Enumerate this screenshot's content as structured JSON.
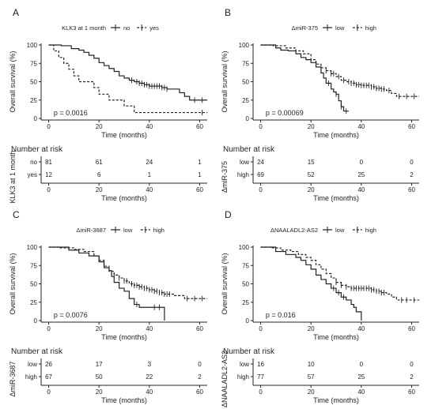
{
  "page": {
    "background": "#ffffff",
    "text_color": "#222222"
  },
  "chart_data": [
    {
      "type": "line",
      "panel_letter": "A",
      "legend_title": "KLK3 at 1 month",
      "legend_position": "top",
      "xlabel": "Time (months)",
      "ylabel": "Overall survival (%)",
      "xlim": [
        -3,
        63
      ],
      "ylim": [
        0,
        100
      ],
      "xticks": [
        0,
        20,
        40,
        60
      ],
      "yticks": [
        0,
        25,
        50,
        75,
        100
      ],
      "pvalue": "p = 0.0016",
      "series": [
        {
          "name": "no",
          "style": "solid",
          "steps": [
            [
              0,
              100
            ],
            [
              3,
              100
            ],
            [
              5,
              99
            ],
            [
              9,
              95
            ],
            [
              12,
              93
            ],
            [
              14,
              90
            ],
            [
              16,
              86
            ],
            [
              18,
              82
            ],
            [
              20,
              76
            ],
            [
              22,
              72
            ],
            [
              24,
              68
            ],
            [
              26,
              64
            ],
            [
              28,
              58
            ],
            [
              30,
              55
            ],
            [
              32,
              52
            ],
            [
              34,
              50
            ],
            [
              36,
              48
            ],
            [
              38,
              46
            ],
            [
              40,
              44
            ],
            [
              45,
              42
            ],
            [
              47,
              40
            ],
            [
              52,
              35
            ],
            [
              54,
              30
            ],
            [
              56,
              25
            ],
            [
              63,
              25
            ]
          ],
          "censor": [
            33,
            35,
            36,
            37,
            38,
            39,
            40,
            41,
            42,
            43,
            44,
            45,
            46,
            47,
            58,
            61
          ]
        },
        {
          "name": "yes",
          "style": "dashed",
          "steps": [
            [
              0,
              100
            ],
            [
              2,
              92
            ],
            [
              4,
              83
            ],
            [
              6,
              75
            ],
            [
              8,
              67
            ],
            [
              10,
              58
            ],
            [
              12,
              50
            ],
            [
              18,
              42
            ],
            [
              20,
              33
            ],
            [
              24,
              25
            ],
            [
              30,
              17
            ],
            [
              34,
              8
            ],
            [
              63,
              8
            ]
          ],
          "censor": [
            61
          ]
        }
      ],
      "risk_table": {
        "title": "Number at risk",
        "ylabel": "KLK3 at 1 month",
        "xlabel": "Time (months)",
        "rows": [
          {
            "label": "no",
            "values": [
              "81",
              "61",
              "24",
              "1"
            ]
          },
          {
            "label": "yes",
            "values": [
              "12",
              "6",
              "1",
              "1"
            ]
          }
        ]
      }
    },
    {
      "type": "line",
      "panel_letter": "B",
      "legend_title": "ΔmiR-375",
      "legend_position": "top",
      "xlabel": "Time (months)",
      "ylabel": "Overall survival (%)",
      "xlim": [
        -3,
        63
      ],
      "ylim": [
        0,
        100
      ],
      "xticks": [
        0,
        20,
        40,
        60
      ],
      "yticks": [
        0,
        25,
        50,
        75,
        100
      ],
      "pvalue": "p = 0.00069",
      "series": [
        {
          "name": "low",
          "style": "solid",
          "steps": [
            [
              0,
              100
            ],
            [
              4,
              100
            ],
            [
              6,
              96
            ],
            [
              8,
              93
            ],
            [
              11,
              92
            ],
            [
              14,
              88
            ],
            [
              16,
              83
            ],
            [
              18,
              80
            ],
            [
              20,
              76
            ],
            [
              22,
              70
            ],
            [
              24,
              62
            ],
            [
              25,
              55
            ],
            [
              26,
              48
            ],
            [
              28,
              40
            ],
            [
              29,
              36
            ],
            [
              30,
              33
            ],
            [
              31,
              24
            ],
            [
              32,
              16
            ],
            [
              33,
              10
            ],
            [
              35,
              10
            ]
          ],
          "censor": [
            27,
            30,
            32,
            34
          ]
        },
        {
          "name": "high",
          "style": "dashed",
          "steps": [
            [
              0,
              100
            ],
            [
              5,
              99
            ],
            [
              10,
              96
            ],
            [
              14,
              92
            ],
            [
              17,
              88
            ],
            [
              20,
              80
            ],
            [
              22,
              74
            ],
            [
              24,
              69
            ],
            [
              26,
              65
            ],
            [
              28,
              61
            ],
            [
              30,
              57
            ],
            [
              32,
              52
            ],
            [
              34,
              50
            ],
            [
              36,
              48
            ],
            [
              38,
              46
            ],
            [
              40,
              45
            ],
            [
              44,
              43
            ],
            [
              46,
              41
            ],
            [
              48,
              40
            ],
            [
              50,
              38
            ],
            [
              52,
              34
            ],
            [
              54,
              30
            ],
            [
              63,
              30
            ]
          ],
          "censor": [
            26,
            28,
            29,
            31,
            33,
            35,
            36,
            37,
            38,
            39,
            40,
            41,
            42,
            43,
            44,
            45,
            46,
            47,
            48,
            49,
            51,
            55,
            58,
            61
          ]
        }
      ],
      "risk_table": {
        "title": "Number at risk",
        "ylabel": "ΔmiR-375",
        "xlabel": "Time (months)",
        "rows": [
          {
            "label": "low",
            "values": [
              "24",
              "15",
              "0",
              "0"
            ]
          },
          {
            "label": "high",
            "values": [
              "69",
              "52",
              "25",
              "2"
            ]
          }
        ]
      }
    },
    {
      "type": "line",
      "panel_letter": "C",
      "legend_title": "ΔmiR-3687",
      "legend_position": "top",
      "xlabel": "Time (months)",
      "ylabel": "Overall survival (%)",
      "xlim": [
        -3,
        63
      ],
      "ylim": [
        0,
        100
      ],
      "xticks": [
        0,
        20,
        40,
        60
      ],
      "yticks": [
        0,
        25,
        50,
        75,
        100
      ],
      "pvalue": "p = 0.0076",
      "series": [
        {
          "name": "low",
          "style": "solid",
          "steps": [
            [
              0,
              100
            ],
            [
              6,
              100
            ],
            [
              8,
              96
            ],
            [
              12,
              92
            ],
            [
              16,
              88
            ],
            [
              20,
              80
            ],
            [
              22,
              72
            ],
            [
              24,
              68
            ],
            [
              25,
              60
            ],
            [
              26,
              52
            ],
            [
              28,
              44
            ],
            [
              30,
              40
            ],
            [
              32,
              30
            ],
            [
              34,
              22
            ],
            [
              36,
              18
            ],
            [
              44,
              18
            ],
            [
              46,
              0
            ]
          ],
          "censor": [
            35,
            42,
            44
          ]
        },
        {
          "name": "high",
          "style": "dashed",
          "steps": [
            [
              0,
              100
            ],
            [
              4,
              99
            ],
            [
              10,
              97
            ],
            [
              14,
              94
            ],
            [
              18,
              88
            ],
            [
              20,
              82
            ],
            [
              22,
              74
            ],
            [
              24,
              67
            ],
            [
              26,
              62
            ],
            [
              28,
              58
            ],
            [
              30,
              54
            ],
            [
              32,
              50
            ],
            [
              34,
              48
            ],
            [
              36,
              46
            ],
            [
              38,
              44
            ],
            [
              40,
              42
            ],
            [
              42,
              40
            ],
            [
              44,
              38
            ],
            [
              46,
              36
            ],
            [
              50,
              34
            ],
            [
              54,
              30
            ],
            [
              63,
              30
            ]
          ],
          "censor": [
            26,
            28,
            30,
            31,
            33,
            34,
            35,
            36,
            37,
            38,
            39,
            40,
            41,
            42,
            43,
            44,
            45,
            46,
            47,
            48,
            55,
            58,
            61
          ]
        }
      ],
      "risk_table": {
        "title": "Number at risk",
        "ylabel": "ΔmiR-3687",
        "xlabel": "Time (months)",
        "rows": [
          {
            "label": "low",
            "values": [
              "26",
              "17",
              "3",
              "0"
            ]
          },
          {
            "label": "high",
            "values": [
              "67",
              "50",
              "22",
              "2"
            ]
          }
        ]
      }
    },
    {
      "type": "line",
      "panel_letter": "D",
      "legend_title": "ΔNAALADL2-AS2",
      "legend_position": "top",
      "xlabel": "Time (months)",
      "ylabel": "Overall survival (%)",
      "xlim": [
        -3,
        63
      ],
      "ylim": [
        0,
        100
      ],
      "xticks": [
        0,
        20,
        40,
        60
      ],
      "yticks": [
        0,
        25,
        50,
        75,
        100
      ],
      "pvalue": "p = 0.016",
      "series": [
        {
          "name": "low",
          "style": "solid",
          "steps": [
            [
              0,
              100
            ],
            [
              4,
              100
            ],
            [
              6,
              94
            ],
            [
              10,
              90
            ],
            [
              14,
              86
            ],
            [
              16,
              82
            ],
            [
              18,
              76
            ],
            [
              20,
              70
            ],
            [
              22,
              62
            ],
            [
              24,
              56
            ],
            [
              26,
              50
            ],
            [
              28,
              44
            ],
            [
              30,
              38
            ],
            [
              32,
              32
            ],
            [
              34,
              28
            ],
            [
              36,
              22
            ],
            [
              37,
              18
            ],
            [
              38,
              12
            ],
            [
              40,
              0
            ]
          ],
          "censor": [
            29,
            31,
            33
          ]
        },
        {
          "name": "high",
          "style": "dashed",
          "steps": [
            [
              0,
              100
            ],
            [
              4,
              99
            ],
            [
              8,
              96
            ],
            [
              12,
              94
            ],
            [
              15,
              90
            ],
            [
              18,
              86
            ],
            [
              20,
              82
            ],
            [
              22,
              76
            ],
            [
              24,
              70
            ],
            [
              26,
              64
            ],
            [
              28,
              58
            ],
            [
              30,
              52
            ],
            [
              32,
              48
            ],
            [
              34,
              46
            ],
            [
              36,
              44
            ],
            [
              40,
              44
            ],
            [
              44,
              42
            ],
            [
              46,
              40
            ],
            [
              48,
              38
            ],
            [
              50,
              36
            ],
            [
              52,
              32
            ],
            [
              54,
              28
            ],
            [
              63,
              28
            ]
          ],
          "censor": [
            30,
            32,
            34,
            36,
            37,
            38,
            39,
            40,
            41,
            42,
            43,
            44,
            45,
            46,
            47,
            48,
            49,
            56,
            58,
            61
          ]
        }
      ],
      "risk_table": {
        "title": "Number at risk",
        "ylabel": "ΔNAALADL2-AS2",
        "xlabel": "Time (months)",
        "rows": [
          {
            "label": "low",
            "values": [
              "16",
              "10",
              "0",
              "0"
            ]
          },
          {
            "label": "high",
            "values": [
              "77",
              "57",
              "25",
              "2"
            ]
          }
        ]
      }
    }
  ]
}
